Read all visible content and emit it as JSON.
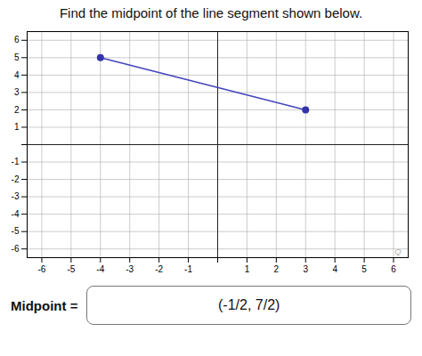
{
  "chart_data": {
    "type": "line",
    "title": "Find the midpoint of the line segment shown below.",
    "x": [
      -4,
      3
    ],
    "series": [
      {
        "type": "line",
        "color": "#4444bb",
        "values": [
          5,
          2
        ]
      },
      {
        "type": "scatter",
        "color": "#3333aa",
        "marker": "o",
        "values": [
          5,
          2
        ]
      }
    ],
    "xlim": [
      -6.5,
      6.5
    ],
    "ylim": [
      -6.5,
      6.5
    ],
    "xticks": [
      -6,
      -5,
      -4,
      -3,
      -2,
      -1,
      {
        "value": 0,
        "label": ""
      },
      1,
      2,
      3,
      4,
      5,
      6
    ],
    "yticks": [
      -6,
      -5,
      -4,
      -3,
      -2,
      -1,
      {
        "value": 0,
        "label": ""
      },
      1,
      2,
      3,
      4,
      5,
      6
    ],
    "grid": true,
    "annotations": [
      "Q",
      "Midpoint =",
      "(-1/2, 7/2)"
    ]
  }
}
